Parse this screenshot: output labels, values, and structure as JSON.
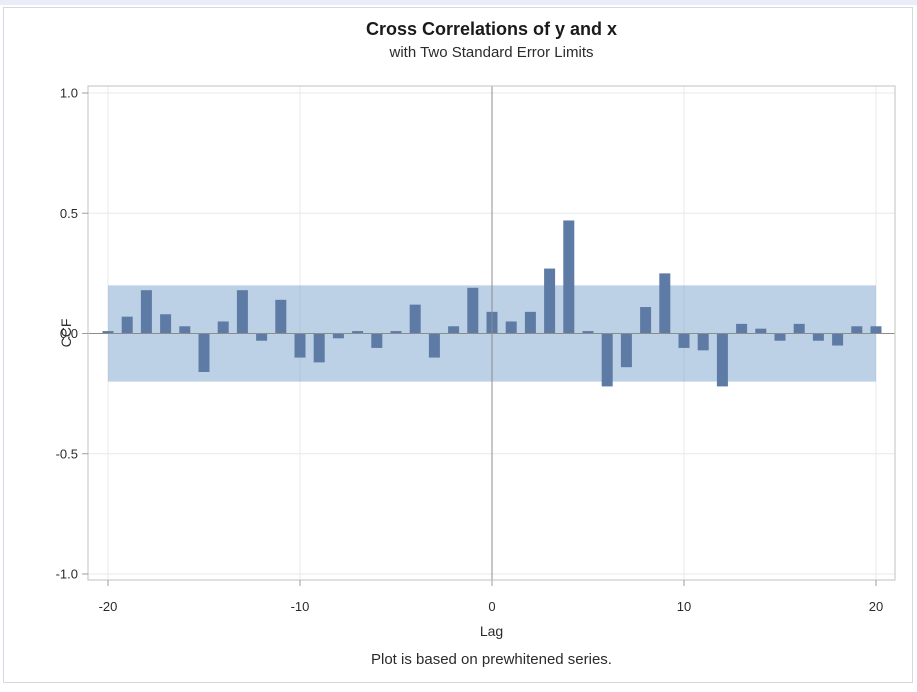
{
  "chart_data": {
    "type": "bar",
    "title": "Cross Correlations of y and x",
    "subtitle": "with Two Standard Error Limits",
    "footnote": "Plot is based on prewhitened series.",
    "xlabel": "Lag",
    "ylabel": "CCF",
    "x": [
      -20,
      -19,
      -18,
      -17,
      -16,
      -15,
      -14,
      -13,
      -12,
      -11,
      -10,
      -9,
      -8,
      -7,
      -6,
      -5,
      -4,
      -3,
      -2,
      -1,
      0,
      1,
      2,
      3,
      4,
      5,
      6,
      7,
      8,
      9,
      10,
      11,
      12,
      13,
      14,
      15,
      16,
      17,
      18,
      19,
      20
    ],
    "values": [
      0.01,
      0.07,
      0.18,
      0.08,
      0.03,
      -0.16,
      0.05,
      0.18,
      -0.03,
      0.14,
      -0.1,
      -0.12,
      -0.02,
      0.01,
      -0.06,
      0.01,
      0.12,
      -0.1,
      0.03,
      0.19,
      0.09,
      0.05,
      0.09,
      0.27,
      0.47,
      0.01,
      -0.22,
      -0.14,
      0.11,
      0.25,
      -0.06,
      -0.07,
      -0.22,
      0.04,
      0.02,
      -0.03,
      0.04,
      -0.03,
      -0.05,
      0.03,
      0.03
    ],
    "band": {
      "name": "two-standard-error-limits",
      "lower": -0.2,
      "upper": 0.2
    },
    "xlim": [
      -21,
      21
    ],
    "ylim": [
      -1.05,
      1.05
    ],
    "xticks": {
      "values": [
        -20,
        -10,
        0,
        10,
        20
      ],
      "labels": [
        "-20",
        "-10",
        "0",
        "10",
        "20"
      ]
    },
    "yticks": {
      "values": [
        1.0,
        0.5,
        0.0,
        -0.5,
        -1.0
      ],
      "labels": [
        "1.0",
        "0.5",
        "0.0",
        "-0.5",
        "-1.0"
      ]
    },
    "grid": true,
    "legend": "none",
    "colors": {
      "bar": "#5d7ba4",
      "band_base": "#7aa1cd",
      "band_opacity": 0.5,
      "grid": "#e8e8e8",
      "axis_origin": "#8c8c8c",
      "frame": "#cbcbcb",
      "tick": "#9e9e9e",
      "text": "#2b2b2b"
    }
  }
}
